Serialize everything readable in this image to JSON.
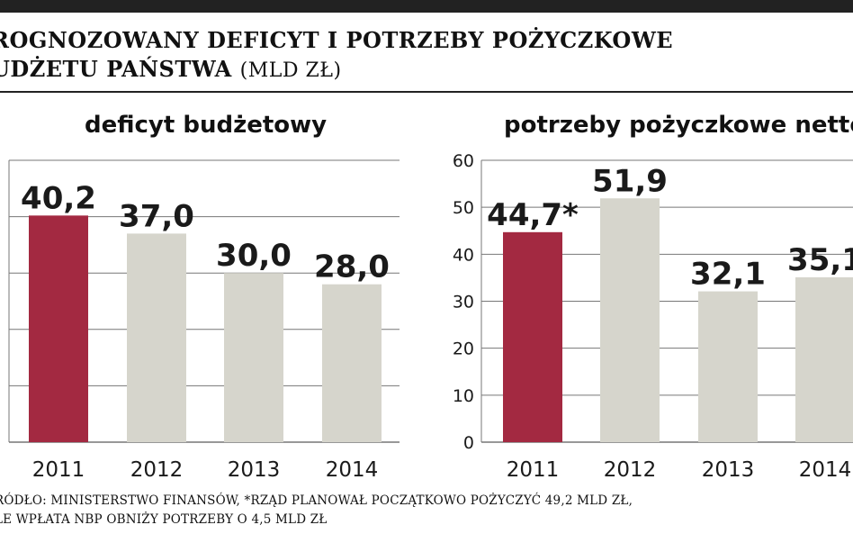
{
  "header": {
    "title_line1": "ROGNOZOWANY DEFICYT I POTRZEBY POŻYCZKOWE",
    "title_line2": "UDŻETU PAŃSTWA",
    "unit": "(MLD ZŁ)"
  },
  "footer": {
    "line1": "RÓDŁO: MINISTERSTWO FINANSÓW, *RZĄD PLANOWAŁ POCZĄTKOWO POŻYCZYĆ 49,2 MLD ZŁ,",
    "line2": "LE WPŁATA NBP OBNIŻY POTRZEBY O 4,5 MLD ZŁ"
  },
  "colors": {
    "highlight": "#a32941",
    "bar": "#d6d5cc",
    "grid": "#777777",
    "text": "#1a1a1a"
  },
  "chart_data": [
    {
      "type": "bar",
      "title": "deficyt budżetowy",
      "categories": [
        "2011",
        "2012",
        "2013",
        "2014"
      ],
      "values": [
        40.2,
        37.0,
        30.0,
        28.0
      ],
      "value_labels": [
        "40,2",
        "37,0",
        "30,0",
        "28,0"
      ],
      "highlight_index": 0,
      "ylim": [
        0,
        50
      ],
      "grid": true
    },
    {
      "type": "bar",
      "title": "potrzeby pożyczkowe netto",
      "categories": [
        "2011",
        "2012",
        "2013",
        "2014"
      ],
      "values": [
        44.7,
        51.9,
        32.1,
        35.1
      ],
      "value_labels": [
        "44,7*",
        "51,9",
        "32,1",
        "35,1"
      ],
      "highlight_index": 0,
      "ylim": [
        0,
        60
      ],
      "yticks": [
        "0",
        "10",
        "20",
        "30",
        "40",
        "50",
        "60"
      ],
      "grid": true
    }
  ]
}
